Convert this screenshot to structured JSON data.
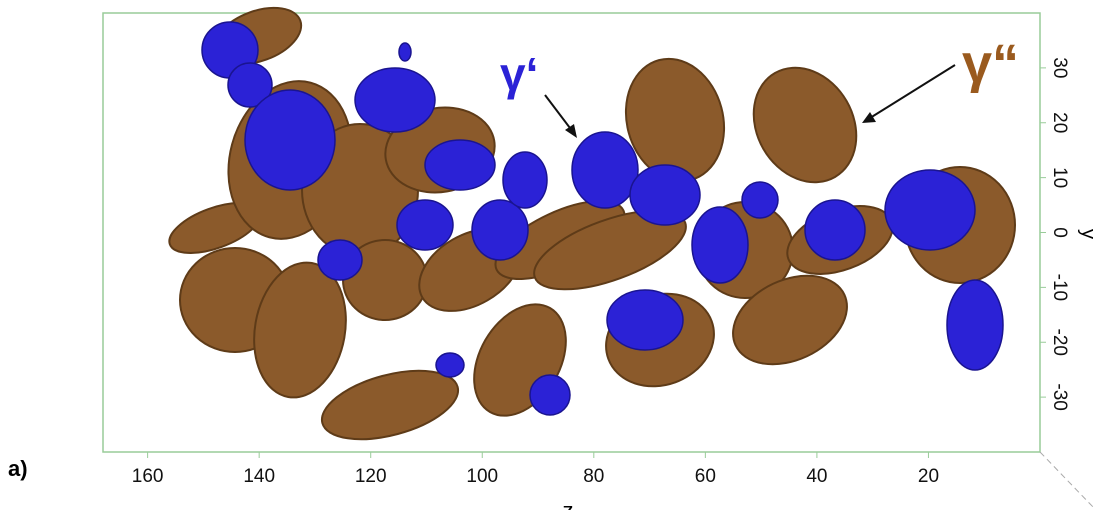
{
  "figure": {
    "panel_label": "a)",
    "x_axis": {
      "label": "z",
      "lim": [
        168,
        0
      ],
      "ticks": [
        160,
        140,
        120,
        100,
        80,
        60,
        40,
        20
      ]
    },
    "y_axis": {
      "label": "y",
      "lim": [
        -40,
        40
      ],
      "ticks": [
        30,
        20,
        10,
        0,
        -10,
        -20,
        -30
      ]
    },
    "annotations": [
      {
        "label": "γ‘",
        "color": "#2b22d6"
      },
      {
        "label": "γ“",
        "color": "#9a5a1e"
      }
    ]
  }
}
